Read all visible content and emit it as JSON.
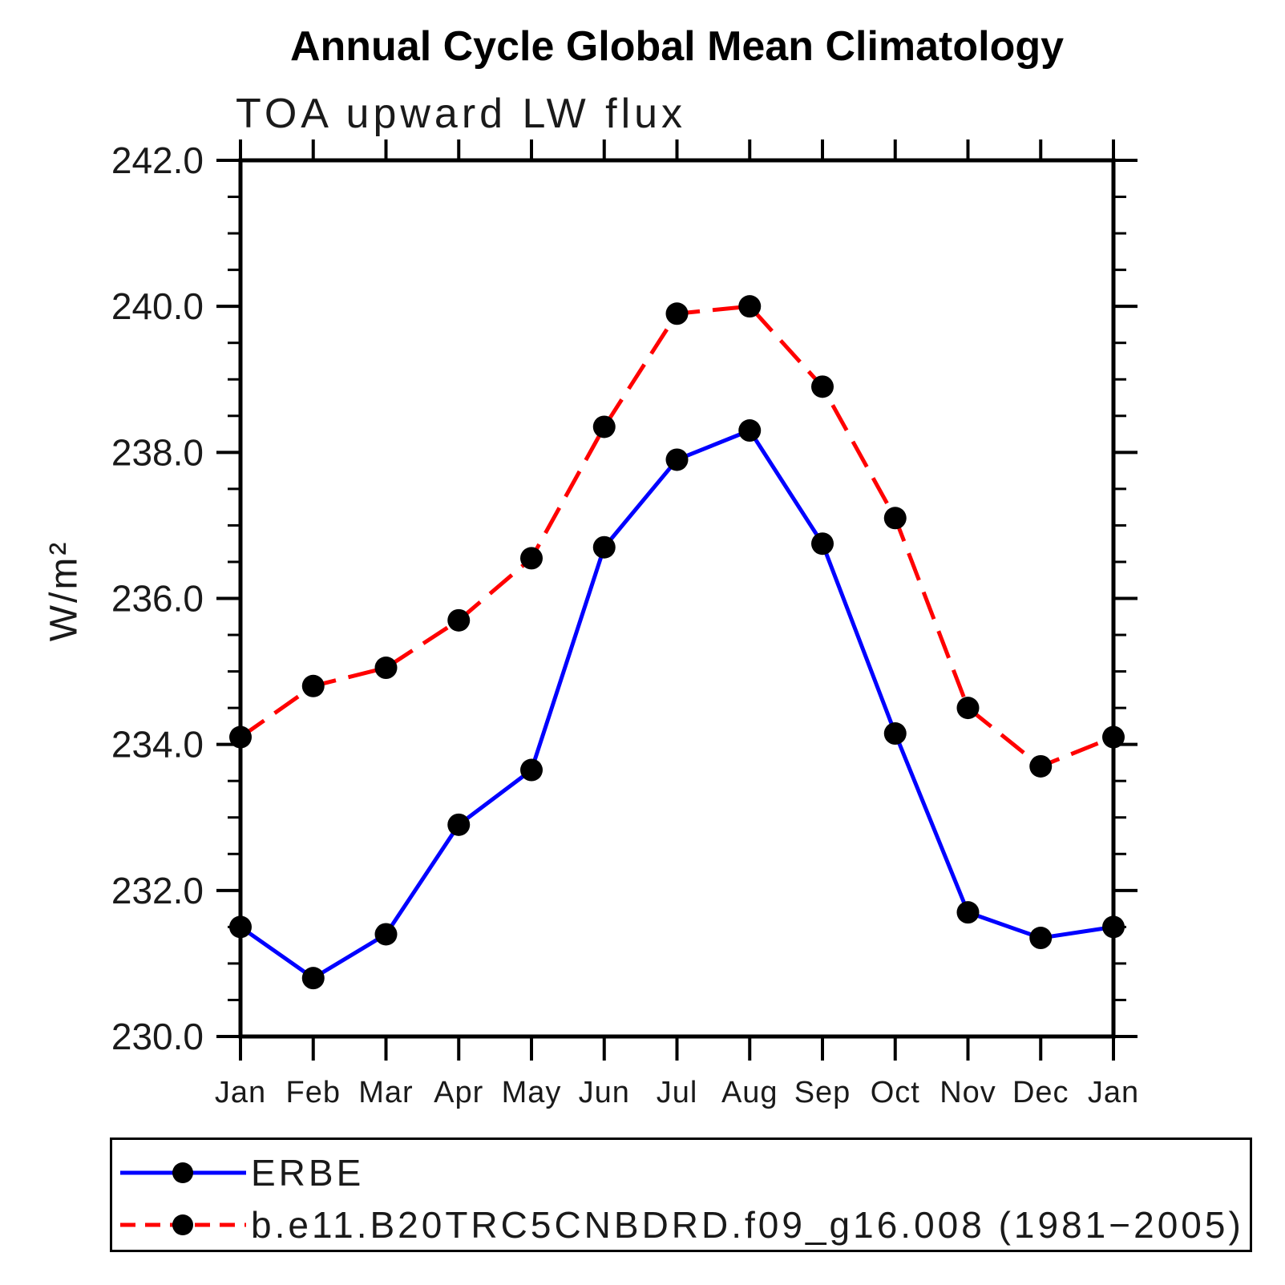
{
  "chart_data": {
    "type": "line",
    "title": "Annual Cycle Global Mean Climatology",
    "subtitle": "TOA upward LW flux",
    "ylabel": "W/m²",
    "ylim": [
      230.0,
      242.0
    ],
    "ytick_values": [
      242.0,
      240.0,
      238.0,
      236.0,
      234.0,
      232.0,
      230.0
    ],
    "ytick_labels": [
      "242.0",
      "240.0",
      "238.0",
      "236.0",
      "234.0",
      "232.0",
      "230.0"
    ],
    "yminor_step": 0.5,
    "ymajor_step": 2.0,
    "grid": false,
    "legend_position": "bottom",
    "categories": [
      "Jan",
      "Feb",
      "Mar",
      "Apr",
      "May",
      "Jun",
      "Jul",
      "Aug",
      "Sep",
      "Oct",
      "Nov",
      "Dec",
      "Jan"
    ],
    "series": [
      {
        "name": "ERBE",
        "color": "#0000ff",
        "line_style": "solid",
        "marker": "filled-circle",
        "marker_color": "#000000",
        "values": [
          231.5,
          230.8,
          231.4,
          232.9,
          233.65,
          236.7,
          237.9,
          238.3,
          236.75,
          234.15,
          231.7,
          231.35,
          231.5
        ]
      },
      {
        "name": "b.e11.B20TRC5CNBDRD.f09_g16.008 (1981−2005)",
        "color": "#ff0000",
        "line_style": "dashed",
        "marker": "filled-circle",
        "marker_color": "#000000",
        "values": [
          234.1,
          234.8,
          235.05,
          235.7,
          236.55,
          238.35,
          239.9,
          240.0,
          238.9,
          237.1,
          234.5,
          233.7,
          234.1
        ]
      }
    ]
  }
}
